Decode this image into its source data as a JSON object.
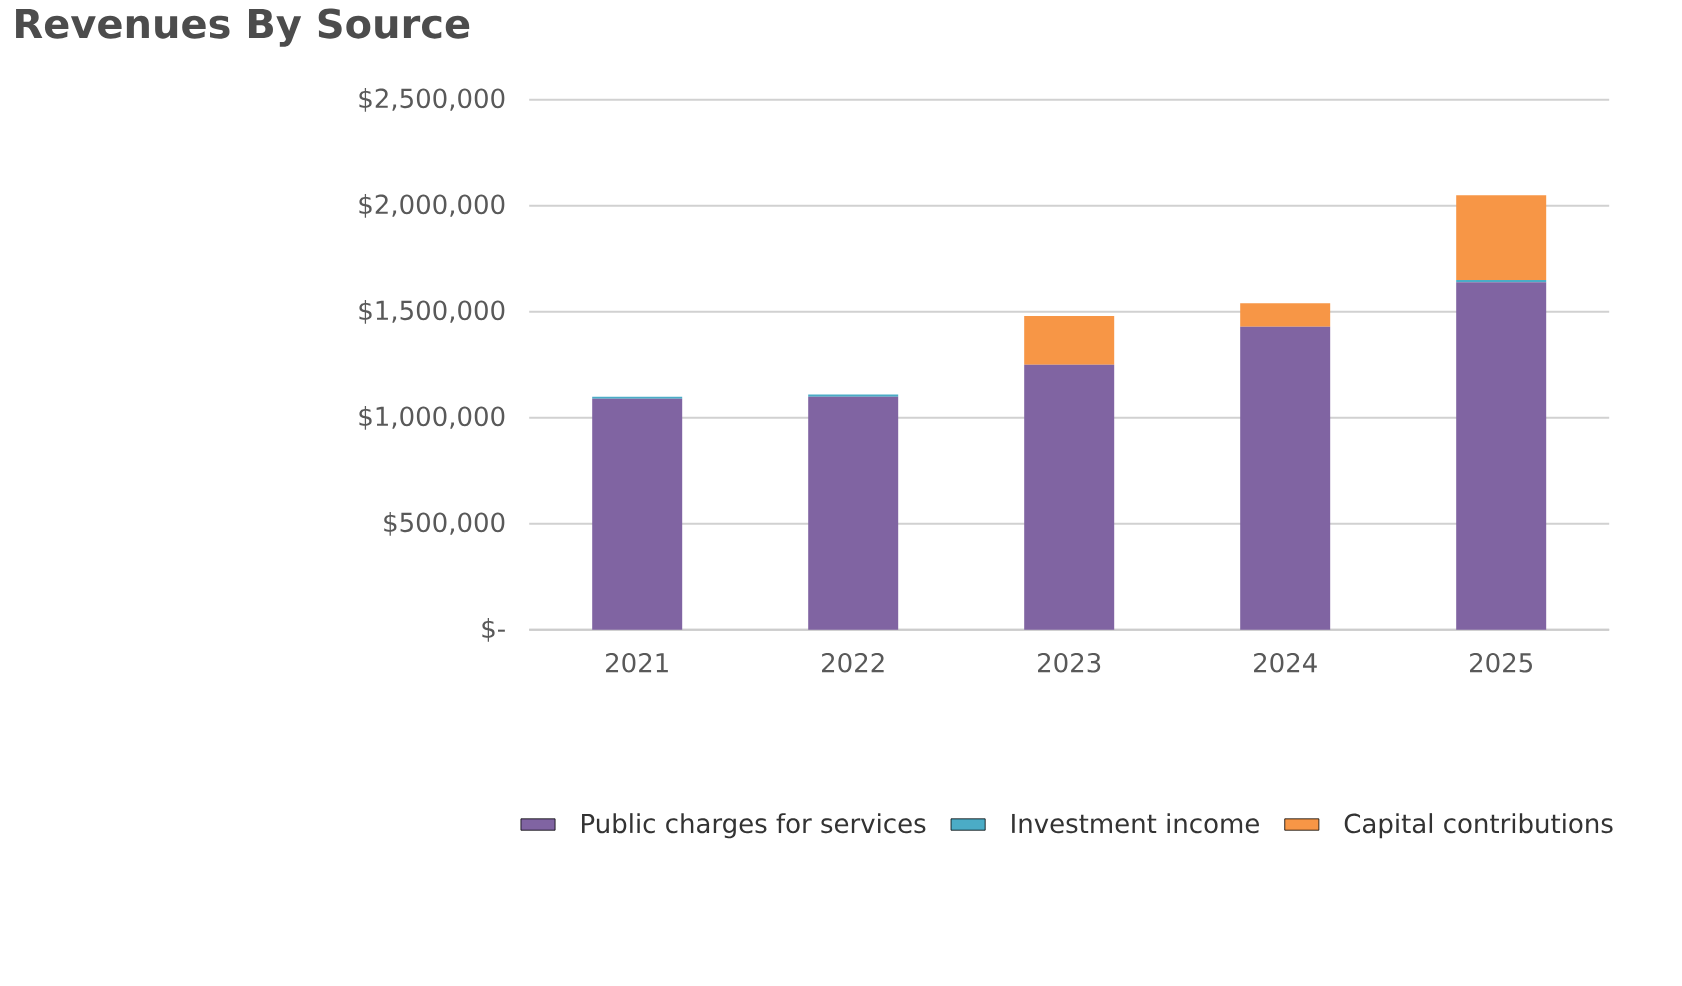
{
  "chart_data": {
    "type": "bar",
    "title": "Revenues By Source",
    "stacked": true,
    "categories": [
      "2021",
      "2022",
      "2023",
      "2024",
      "2025"
    ],
    "series": [
      {
        "name": "Public charges for services",
        "color": "#8064a2",
        "values": [
          1090000,
          1100000,
          1250000,
          1430000,
          1640000
        ]
      },
      {
        "name": "Investment income",
        "color": "#4bacc6",
        "values": [
          10000,
          10000,
          0,
          0,
          10000
        ]
      },
      {
        "name": "Capital contributions",
        "color": "#f79646",
        "values": [
          0,
          0,
          230000,
          110000,
          400000
        ]
      }
    ],
    "ylim": [
      0,
      2500000
    ],
    "yticks": [
      {
        "value": 0,
        "label": "$-"
      },
      {
        "value": 500000,
        "label": "$500,000"
      },
      {
        "value": 1000000,
        "label": "$1,000,000"
      },
      {
        "value": 1500000,
        "label": "$1,500,000"
      },
      {
        "value": 2000000,
        "label": "$2,000,000"
      },
      {
        "value": 2500000,
        "label": "$2,500,000"
      }
    ],
    "grid": "y",
    "legend": "bottom"
  }
}
